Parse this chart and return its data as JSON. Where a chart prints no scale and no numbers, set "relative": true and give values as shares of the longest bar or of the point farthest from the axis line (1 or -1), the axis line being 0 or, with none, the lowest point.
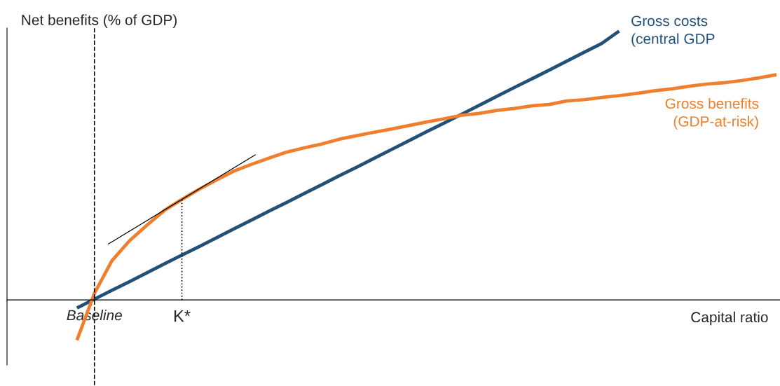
{
  "chart_data": {
    "type": "line",
    "relative": true,
    "ylabel": "Net benefits (% of GDP)",
    "xlabel": "Capital ratio",
    "categories": [
      null,
      "Baseline",
      null,
      null,
      null,
      null,
      "K*",
      null,
      null,
      null,
      null,
      null,
      null,
      null,
      null,
      null,
      null,
      null,
      null,
      null,
      null,
      null,
      null,
      null,
      null,
      null,
      null,
      null,
      null,
      null,
      null,
      null,
      null,
      null,
      null,
      null,
      null,
      null,
      null,
      null,
      null
    ],
    "series": [
      {
        "name": "Gross costs\n(central GDP",
        "color": "#215078",
        "values": [
          -0.03,
          0.003,
          0.036,
          0.068,
          0.101,
          0.134,
          0.167,
          0.199,
          0.232,
          0.265,
          0.298,
          0.331,
          0.363,
          0.396,
          0.429,
          0.462,
          0.494,
          0.527,
          0.56,
          0.593,
          0.626,
          0.658,
          0.691,
          0.724,
          0.757,
          0.79,
          0.822,
          0.855,
          0.888,
          0.921,
          0.954,
          1.0,
          null,
          null,
          null,
          null,
          null,
          null,
          null,
          null,
          null
        ]
      },
      {
        "name": "Gross benefits\n(GDP-at-risk)",
        "color": "#f07f2d",
        "values": [
          -0.15,
          0.025,
          0.146,
          0.22,
          0.278,
          0.333,
          0.374,
          0.412,
          0.447,
          0.48,
          0.505,
          0.528,
          0.55,
          0.566,
          0.58,
          0.598,
          0.611,
          0.624,
          0.636,
          0.649,
          0.662,
          0.674,
          0.687,
          0.694,
          0.705,
          0.712,
          0.722,
          0.727,
          0.74,
          0.745,
          0.753,
          0.76,
          0.768,
          0.778,
          0.785,
          0.795,
          0.803,
          0.808,
          0.816,
          0.826,
          0.838
        ]
      }
    ],
    "ref_lines": [
      {
        "axis": "x",
        "value": "Baseline",
        "color": "#000000",
        "line_style": "dashed"
      },
      {
        "axis": "x",
        "value": "K*",
        "color": "#000000",
        "line_style": "dotted"
      }
    ]
  }
}
